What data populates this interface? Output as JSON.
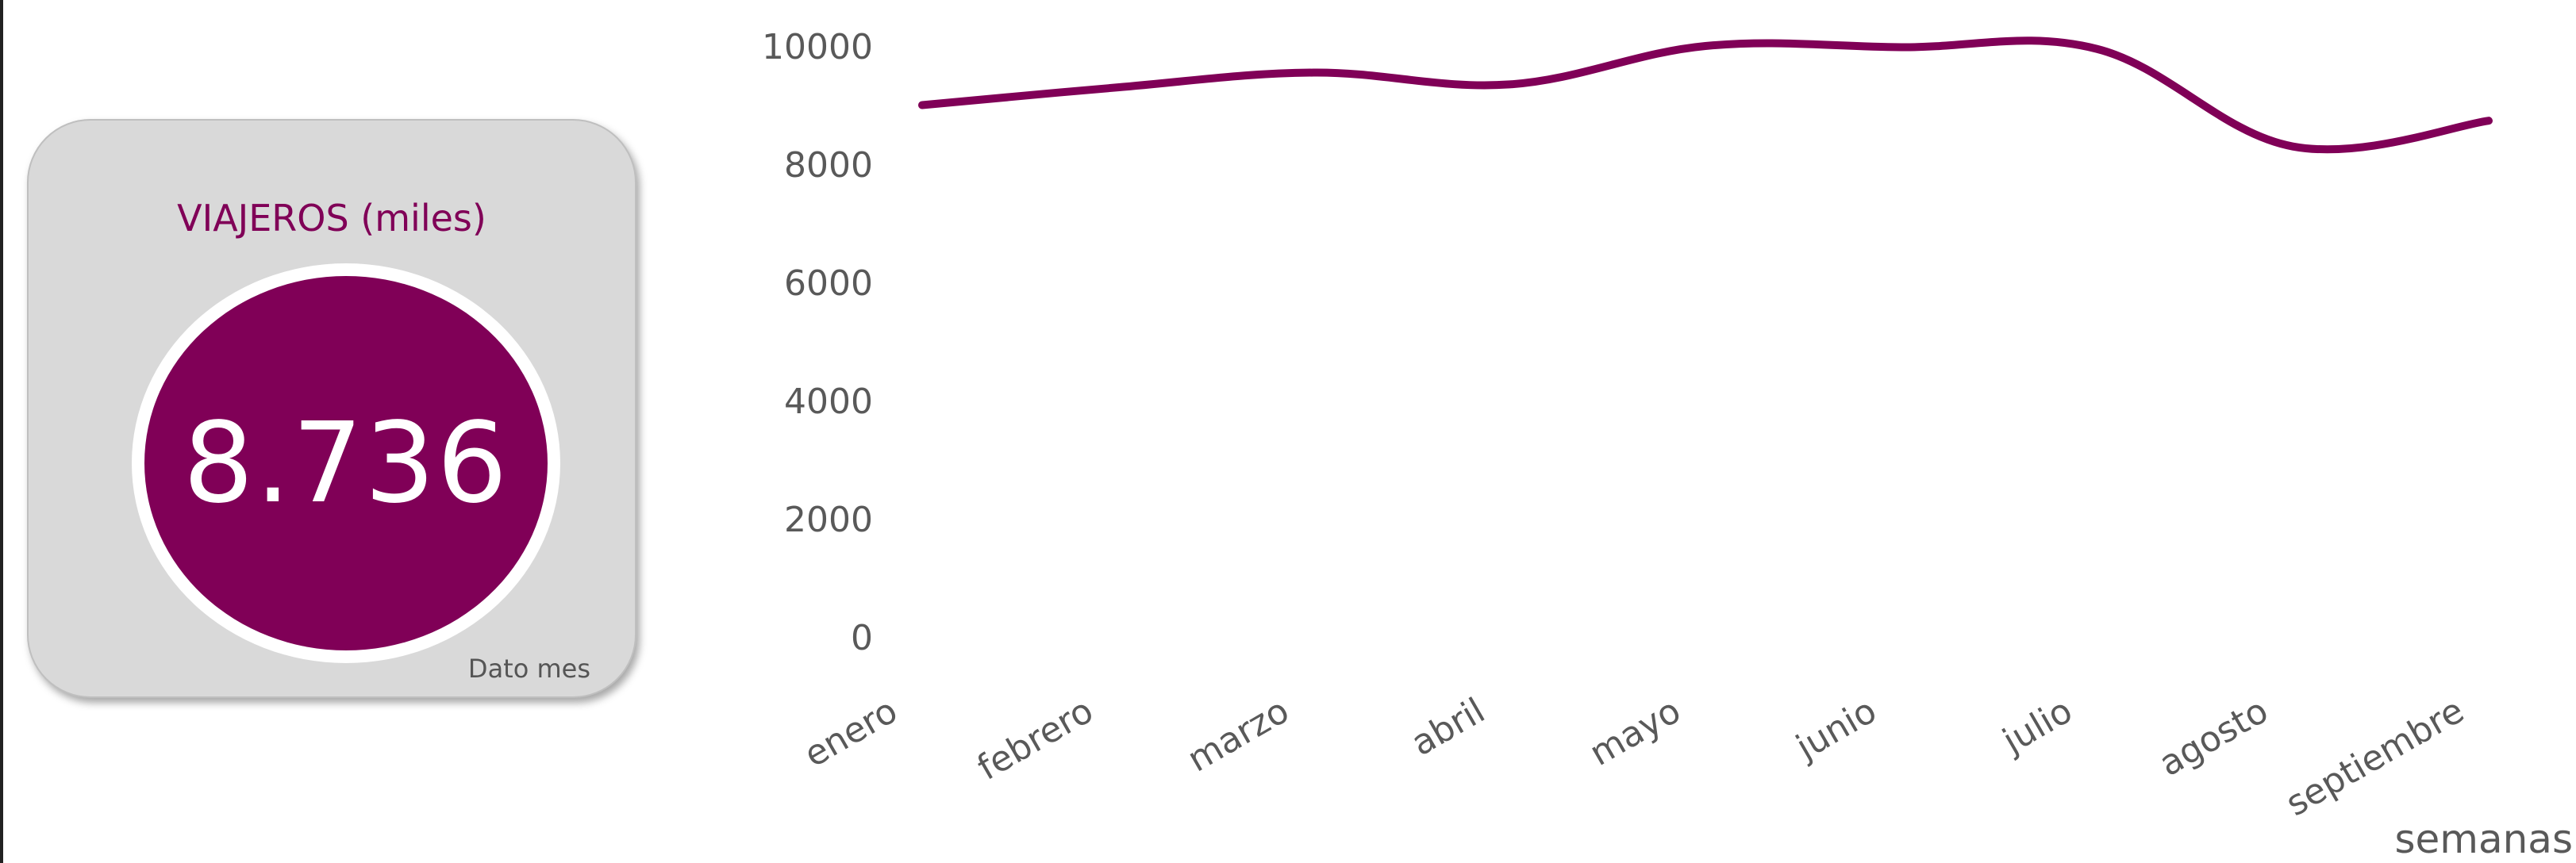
{
  "kpi": {
    "title": "VIAJEROS (miles)",
    "value": "8.736",
    "footnote": "Dato mes"
  },
  "colors": {
    "accent": "#800057",
    "card_bg": "#d9d9d9",
    "text_gray": "#595959"
  },
  "chart_data": {
    "type": "line",
    "categories": [
      "enero",
      "febrero",
      "marzo",
      "abril",
      "mayo",
      "junio",
      "julio",
      "agosto",
      "septiembre"
    ],
    "series": [
      {
        "values": [
          9000,
          9300,
          9550,
          9350,
          10000,
          9980,
          9950,
          8300,
          8736
        ]
      }
    ],
    "yticks": [
      0,
      2000,
      4000,
      6000,
      8000,
      10000
    ],
    "ylim": [
      0,
      10000
    ],
    "xlabel": "semanas",
    "ylabel": "",
    "smooth": true,
    "grid": false
  }
}
